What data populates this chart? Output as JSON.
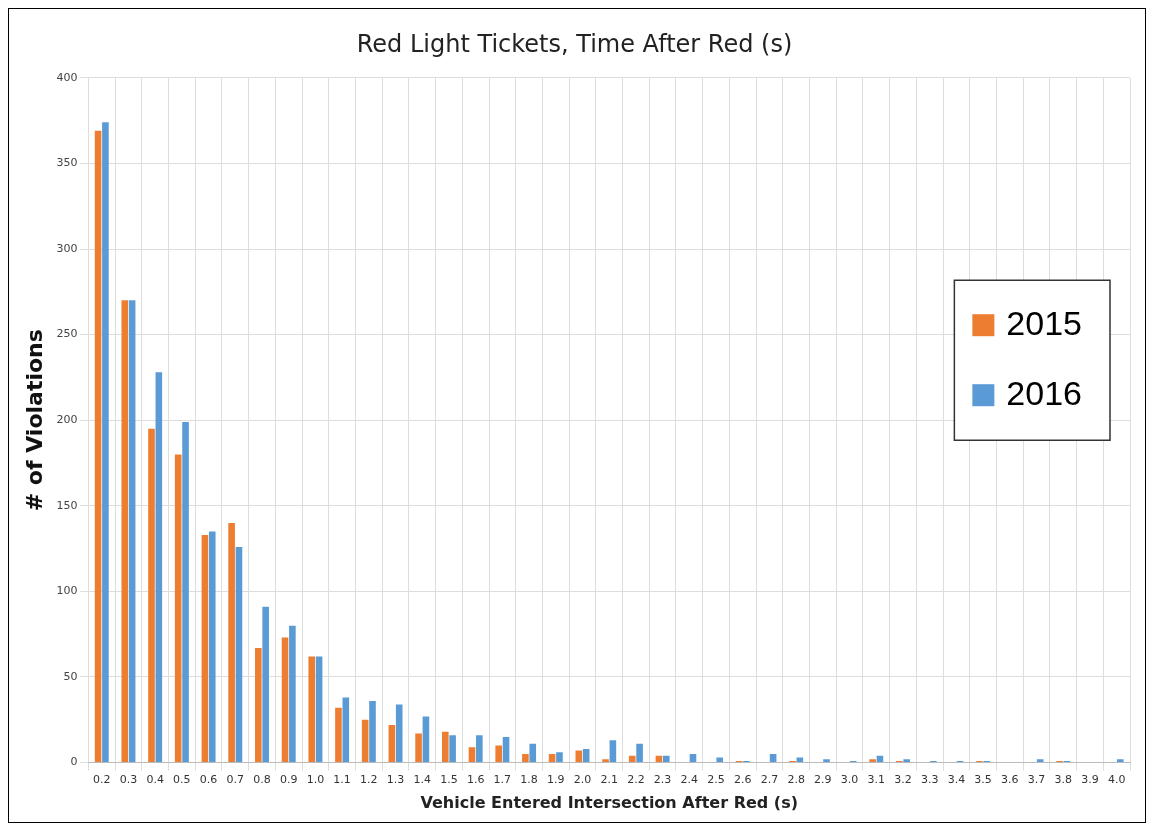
{
  "chart_data": {
    "type": "bar",
    "title": "Red Light Tickets, Time After Red (s)",
    "xlabel": "Vehicle Entered Intersection After Red (s)",
    "ylabel": "# of Violations",
    "categories": [
      "0.2",
      "0.3",
      "0.4",
      "0.5",
      "0.6",
      "0.7",
      "0.8",
      "0.9",
      "1.0",
      "1.1",
      "1.2",
      "1.3",
      "1.4",
      "1.5",
      "1.6",
      "1.7",
      "1.8",
      "1.9",
      "2.0",
      "2.1",
      "2.2",
      "2.3",
      "2.4",
      "2.5",
      "2.6",
      "2.7",
      "2.8",
      "2.9",
      "3.0",
      "3.1",
      "3.2",
      "3.3",
      "3.4",
      "3.5",
      "3.6",
      "3.7",
      "3.8",
      "3.9",
      "4.0"
    ],
    "series": [
      {
        "name": "2015",
        "color": "#ed7d31",
        "values": [
          369,
          270,
          195,
          180,
          133,
          140,
          67,
          73,
          62,
          32,
          25,
          22,
          17,
          18,
          9,
          10,
          5,
          5,
          7,
          2,
          4,
          4,
          0,
          0,
          1,
          0,
          1,
          0,
          0,
          2,
          1,
          0,
          0,
          1,
          0,
          0,
          1,
          0,
          0
        ]
      },
      {
        "name": "2016",
        "color": "#5b9bd5",
        "values": [
          374,
          270,
          228,
          199,
          135,
          126,
          91,
          80,
          62,
          38,
          36,
          34,
          27,
          16,
          16,
          15,
          11,
          6,
          8,
          13,
          11,
          4,
          5,
          3,
          1,
          5,
          3,
          2,
          1,
          4,
          2,
          1,
          1,
          1,
          0,
          2,
          1,
          0,
          2
        ]
      }
    ],
    "ylim": [
      0,
      400
    ],
    "yticks": [
      0,
      50,
      100,
      150,
      200,
      250,
      300,
      350,
      400
    ],
    "grid": true,
    "legend": "right"
  }
}
